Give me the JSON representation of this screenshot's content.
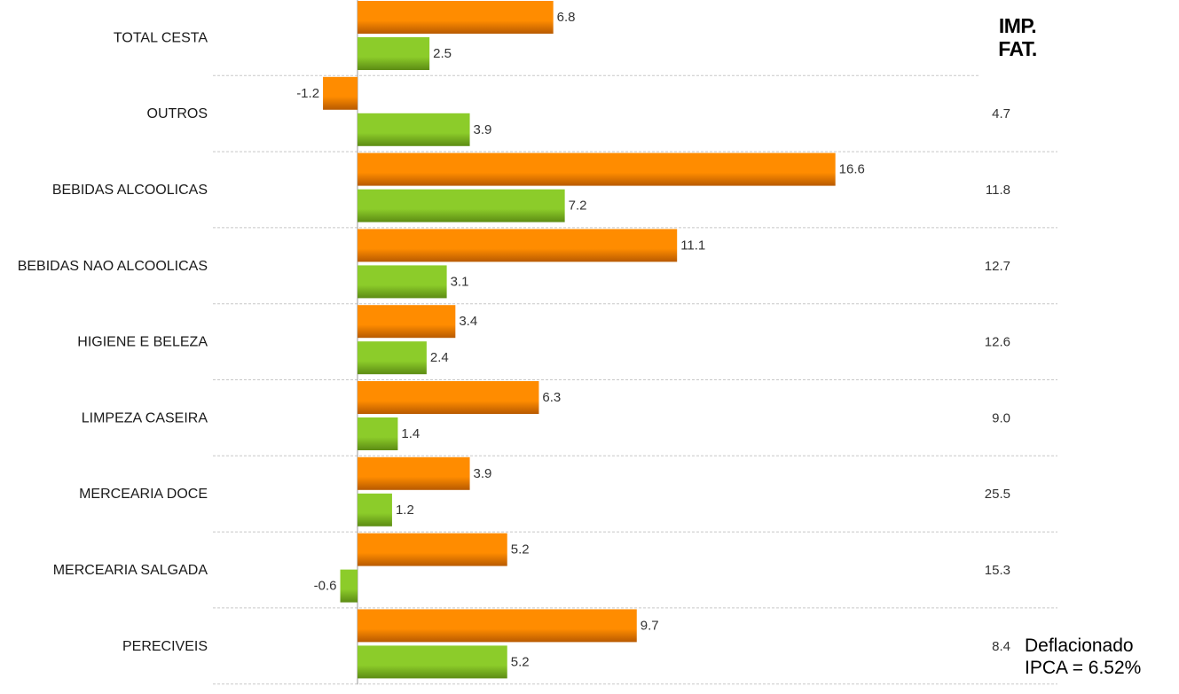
{
  "colors": {
    "series1": "#ff8c00",
    "series1_dark": "#b85a00",
    "series2": "#8ccc2a",
    "series2_dark": "#5c8c14",
    "gridline": "#c8c8c8",
    "axis": "#9a9a9a"
  },
  "header": {
    "line1": "IMP.",
    "line2": "FAT."
  },
  "footnote": {
    "line1": "Deflacionado",
    "line2": "IPCA = 6.52%"
  },
  "chart_data": {
    "type": "bar",
    "orientation": "horizontal",
    "categories": [
      "TOTAL CESTA",
      "OUTROS",
      "BEBIDAS ALCOOLICAS",
      "BEBIDAS NAO ALCOOLICAS",
      "HIGIENE E BELEZA",
      "LIMPEZA CASEIRA",
      "MERCEARIA DOCE",
      "MERCEARIA SALGADA",
      "PERECIVEIS"
    ],
    "series": [
      {
        "color": "#ff8c00",
        "values": [
          6.8,
          -1.2,
          16.6,
          11.1,
          3.4,
          6.3,
          3.9,
          5.2,
          9.7
        ]
      },
      {
        "color": "#8ccc2a",
        "values": [
          2.5,
          3.9,
          7.2,
          3.1,
          2.4,
          1.4,
          1.2,
          -0.6,
          5.2
        ]
      }
    ],
    "value_labels": [
      [
        "6.8",
        "-1.2",
        "16.6",
        "11.1",
        "3.4",
        "6.3",
        "3.9",
        "5.2",
        "9.7"
      ],
      [
        "2.5",
        "3.9",
        "7.2",
        "3.1",
        "2.4",
        "1.4",
        "1.2",
        "-0.6",
        "5.2"
      ]
    ],
    "imp_fat": [
      "",
      "4.7",
      "11.8",
      "12.7",
      "12.6",
      "9.0",
      "25.5",
      "15.3",
      "8.4"
    ],
    "xlim": [
      -1.26,
      16.6
    ],
    "grid": true,
    "legend": "none"
  }
}
